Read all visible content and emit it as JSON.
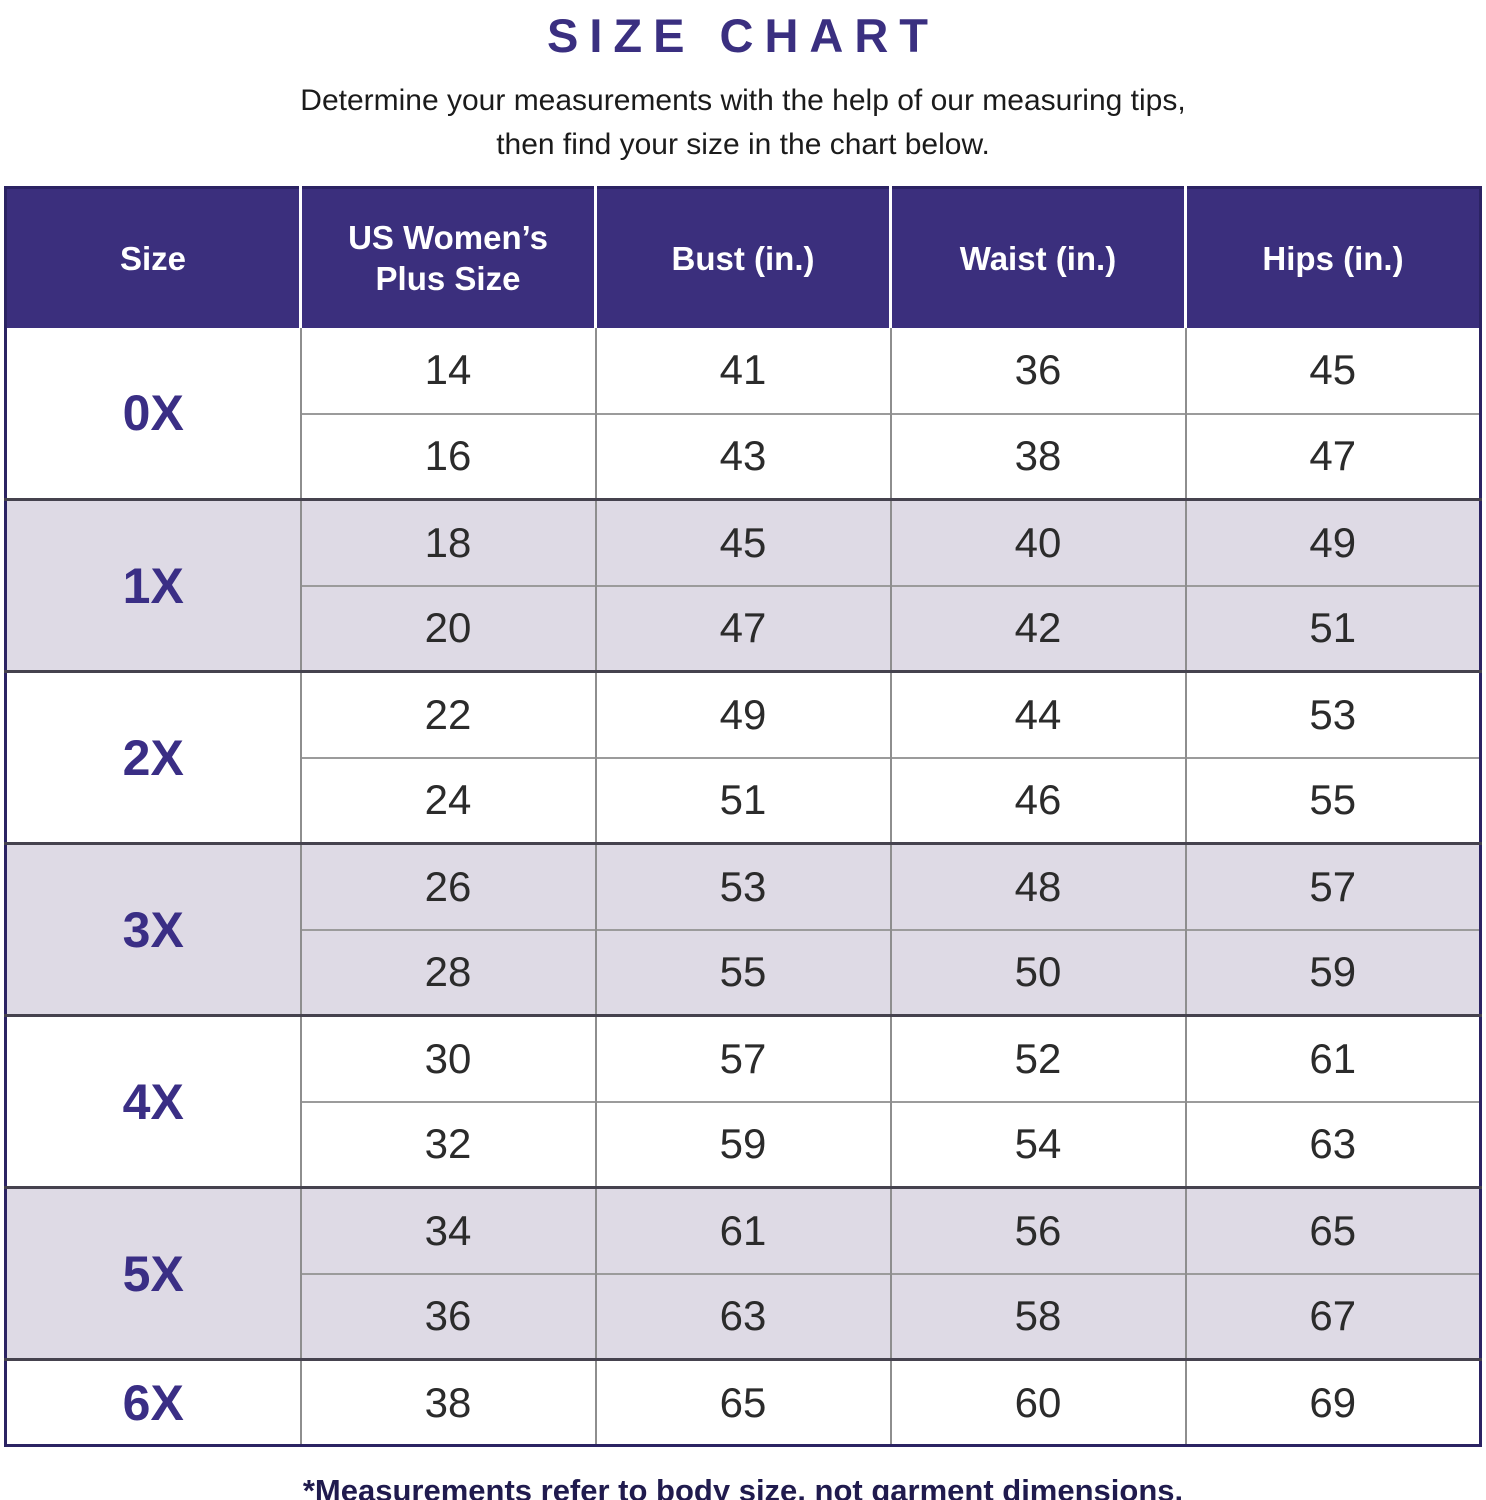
{
  "title": "SIZE CHART",
  "subtitle": {
    "line1": "Determine your measurements with the help of our measuring tips,",
    "line2": "then find your size in the chart below."
  },
  "footnote": "*Measurements refer to body size, not garment dimensions.",
  "colors": {
    "header_bg": "#3b2f7d",
    "accent_purple": "#3a2e85",
    "row_lavender": "#dedae5",
    "row_white": "#ffffff",
    "outer_border_navy": "#2b2363",
    "grid_gray": "#8e8e8e",
    "footnote_navy": "#201b4e"
  },
  "table": {
    "headers": [
      "Size",
      "US Women’s Plus Size",
      "Bust (in.)",
      "Waist (in.)",
      "Hips (in.)"
    ],
    "groups": [
      {
        "size": "0X",
        "shade": "white",
        "rows": [
          [
            "14",
            "41",
            "36",
            "45"
          ],
          [
            "16",
            "43",
            "38",
            "47"
          ]
        ]
      },
      {
        "size": "1X",
        "shade": "lavender",
        "rows": [
          [
            "18",
            "45",
            "40",
            "49"
          ],
          [
            "20",
            "47",
            "42",
            "51"
          ]
        ]
      },
      {
        "size": "2X",
        "shade": "white",
        "rows": [
          [
            "22",
            "49",
            "44",
            "53"
          ],
          [
            "24",
            "51",
            "46",
            "55"
          ]
        ]
      },
      {
        "size": "3X",
        "shade": "lavender",
        "rows": [
          [
            "26",
            "53",
            "48",
            "57"
          ],
          [
            "28",
            "55",
            "50",
            "59"
          ]
        ]
      },
      {
        "size": "4X",
        "shade": "white",
        "rows": [
          [
            "30",
            "57",
            "52",
            "61"
          ],
          [
            "32",
            "59",
            "54",
            "63"
          ]
        ]
      },
      {
        "size": "5X",
        "shade": "lavender",
        "rows": [
          [
            "34",
            "61",
            "56",
            "65"
          ],
          [
            "36",
            "63",
            "58",
            "67"
          ]
        ]
      },
      {
        "size": "6X",
        "shade": "white",
        "rows": [
          [
            "38",
            "65",
            "60",
            "69"
          ]
        ]
      }
    ]
  },
  "chart_data": {
    "type": "table",
    "title": "SIZE CHART",
    "columns": [
      "Size",
      "US Women’s Plus Size",
      "Bust (in.)",
      "Waist (in.)",
      "Hips (in.)"
    ],
    "rows": [
      [
        "0X",
        14,
        41,
        36,
        45
      ],
      [
        "0X",
        16,
        43,
        38,
        47
      ],
      [
        "1X",
        18,
        45,
        40,
        49
      ],
      [
        "1X",
        20,
        47,
        42,
        51
      ],
      [
        "2X",
        22,
        49,
        44,
        53
      ],
      [
        "2X",
        24,
        51,
        46,
        55
      ],
      [
        "3X",
        26,
        53,
        48,
        57
      ],
      [
        "3X",
        28,
        55,
        50,
        59
      ],
      [
        "4X",
        30,
        57,
        52,
        61
      ],
      [
        "4X",
        32,
        59,
        54,
        63
      ],
      [
        "5X",
        34,
        61,
        56,
        65
      ],
      [
        "5X",
        36,
        63,
        58,
        67
      ],
      [
        "6X",
        38,
        65,
        60,
        69
      ]
    ],
    "notes": "*Measurements refer to body size, not garment dimensions."
  }
}
